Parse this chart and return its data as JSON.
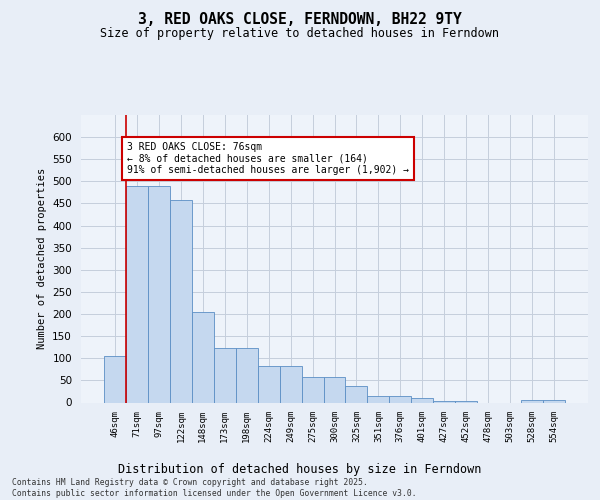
{
  "title_line1": "3, RED OAKS CLOSE, FERNDOWN, BH22 9TY",
  "title_line2": "Size of property relative to detached houses in Ferndown",
  "xlabel": "Distribution of detached houses by size in Ferndown",
  "ylabel": "Number of detached properties",
  "footnote": "Contains HM Land Registry data © Crown copyright and database right 2025.\nContains public sector information licensed under the Open Government Licence v3.0.",
  "bar_labels": [
    "46sqm",
    "71sqm",
    "97sqm",
    "122sqm",
    "148sqm",
    "173sqm",
    "198sqm",
    "224sqm",
    "249sqm",
    "275sqm",
    "300sqm",
    "325sqm",
    "351sqm",
    "376sqm",
    "401sqm",
    "427sqm",
    "452sqm",
    "478sqm",
    "503sqm",
    "528sqm",
    "554sqm"
  ],
  "bar_values": [
    105,
    490,
    490,
    457,
    205,
    123,
    123,
    82,
    82,
    57,
    57,
    38,
    15,
    15,
    10,
    3,
    3,
    0,
    0,
    5,
    5
  ],
  "bar_color": "#C5D8EF",
  "bar_edge_color": "#5B8EC5",
  "property_label": "3 RED OAKS CLOSE: 76sqm",
  "annotation_line1": "← 8% of detached houses are smaller (164)",
  "annotation_line2": "91% of semi-detached houses are larger (1,902) →",
  "red_line_color": "#CC0000",
  "annotation_box_color": "#CC0000",
  "ylim": [
    0,
    650
  ],
  "yticks": [
    0,
    50,
    100,
    150,
    200,
    250,
    300,
    350,
    400,
    450,
    500,
    550,
    600
  ],
  "bg_color": "#E8EEF7",
  "plot_bg_color": "#EEF3FA",
  "grid_color": "#C5CEDC"
}
